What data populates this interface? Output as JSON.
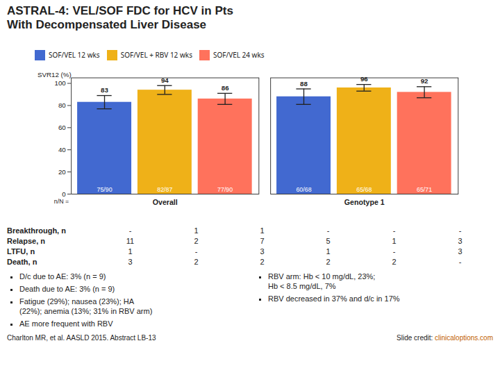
{
  "chart_data": {
    "type": "bar",
    "title": "ASTRAL-4: VEL/SOF FDC for HCV in Pts",
    "subtitle": "With Decompensated Liver Disease",
    "categories": [
      "Overall",
      "Genotype 1"
    ],
    "series": [
      {
        "name": "SOF/VEL 12 wks",
        "values": [
          83,
          88
        ],
        "errors": [
          6,
          7
        ],
        "n_labels": [
          "75/90",
          "60/68"
        ]
      },
      {
        "name": "SOF/VEL + RBV 12 wks",
        "values": [
          94,
          96
        ],
        "errors": [
          4,
          3
        ],
        "n_labels": [
          "82/87",
          "65/68"
        ]
      },
      {
        "name": "SOF/VEL 24 wks",
        "values": [
          86,
          92
        ],
        "errors": [
          5,
          5
        ],
        "n_labels": [
          "77/90",
          "65/71"
        ]
      }
    ],
    "n_label_prefix": "n/N =",
    "ylabel": "SVR12 (%)",
    "ylim": [
      0,
      105
    ],
    "yticks": [
      0,
      20,
      40,
      60,
      80,
      100
    ],
    "grid": false,
    "legend": "top",
    "data_labels": true,
    "table": [
      {
        "label": "Breakthrough, n",
        "values": [
          "-",
          "1",
          "1",
          "-",
          "-",
          "-"
        ]
      },
      {
        "label": "Relapse, n",
        "values": [
          "11",
          "2",
          "7",
          "5",
          "1",
          "3"
        ]
      },
      {
        "label": "LTFU, n",
        "values": [
          "1",
          "-",
          "3",
          "1",
          "-",
          "3"
        ]
      },
      {
        "label": "Death, n",
        "values": [
          "3",
          "2",
          "2",
          "2",
          "2",
          "-"
        ]
      }
    ],
    "bullets_left": [
      "D/c due to AE: 3% (n = 9)",
      "Death due to AE: 3% (n = 9)",
      "Fatigue (29%); nausea (23%); HA\n   (22%); anemia (13%; 31% in RBV arm)",
      "AE more frequent with RBV"
    ],
    "bullets_right": [
      "RBV arm: Hb < 10 mg/dL, 23%;\n   Hb < 8.5 mg/dL, 7%",
      "RBV decreased in 37% and d/c in 17%"
    ],
    "footnote": "Charlton MR, et al. AASLD 2015. Abstract LB-13",
    "credit_prefix": "Slide credit: ",
    "credit_link": "clinicaloptions.com"
  }
}
